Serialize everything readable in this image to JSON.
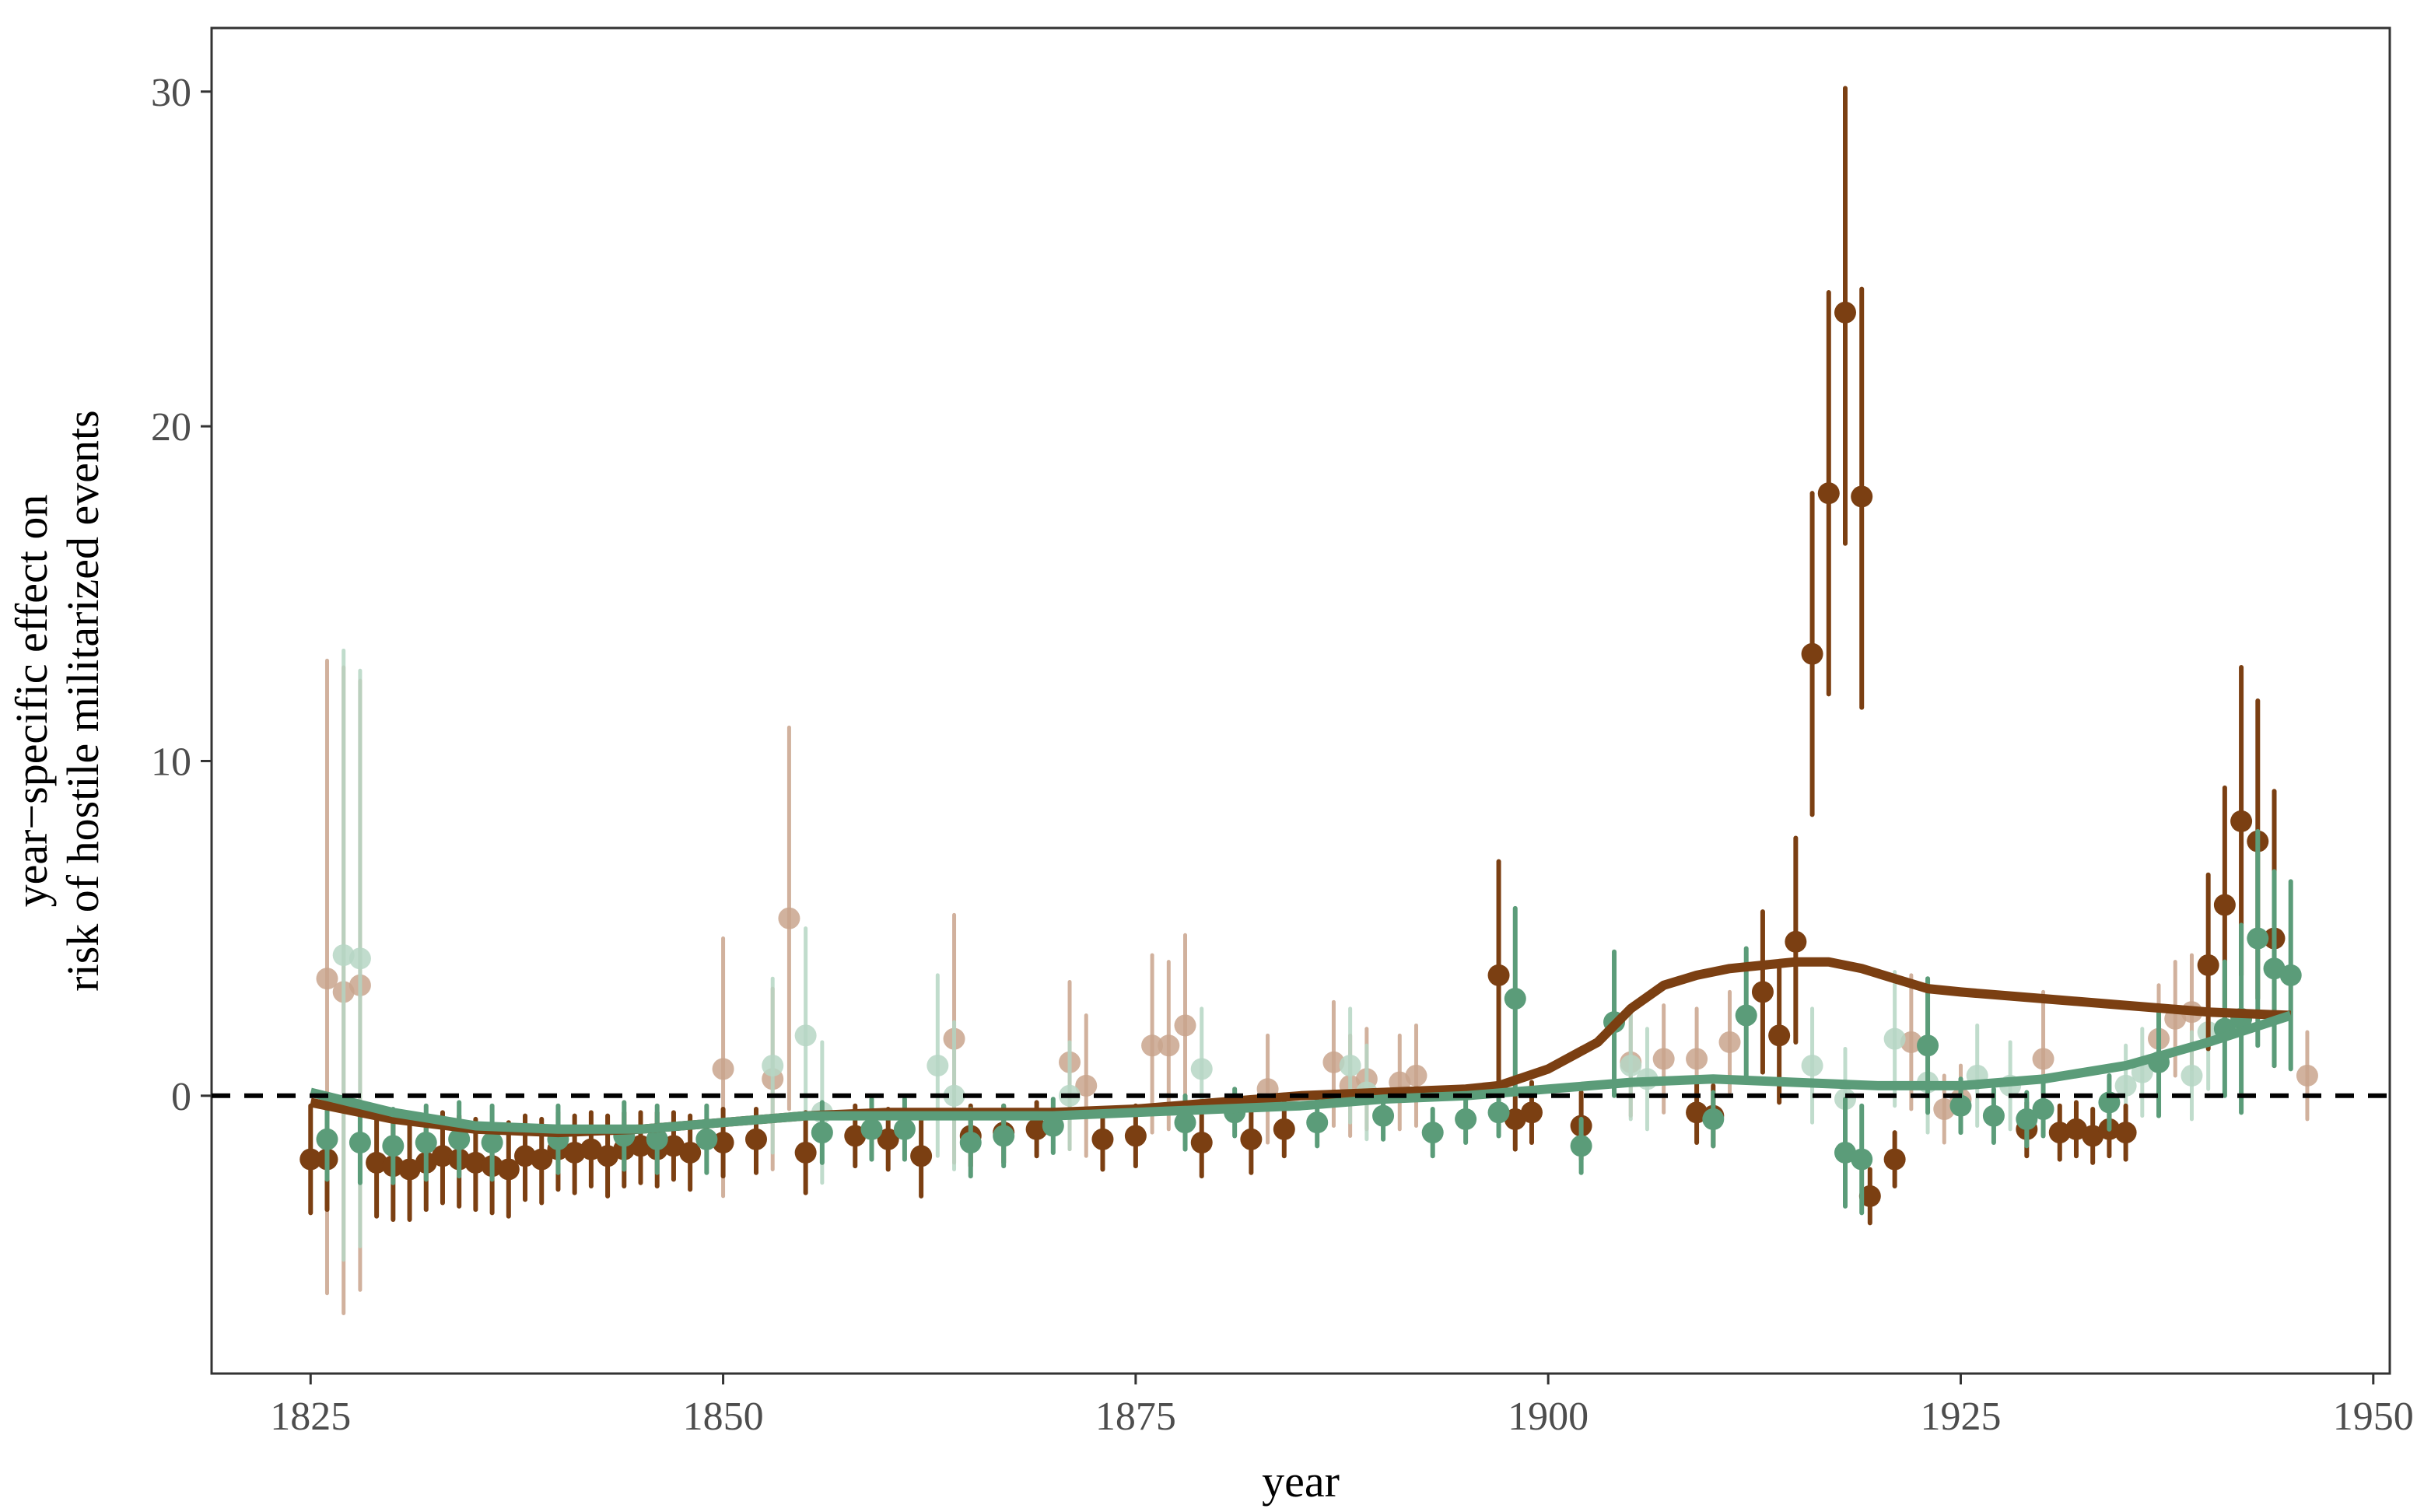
{
  "chart_data": {
    "type": "scatter",
    "title": "",
    "xlabel": "year",
    "ylabel_line1": "year−specific effect on",
    "ylabel_line2": "risk of hostile militarized events",
    "xlim": [
      1819,
      1951
    ],
    "ylim": [
      -8.3,
      31.9
    ],
    "x_ticks": [
      1825,
      1850,
      1875,
      1900,
      1925,
      1950
    ],
    "y_ticks": [
      0,
      10,
      20,
      30
    ],
    "reference_line": 0,
    "grid": false,
    "legend": "none",
    "colors": {
      "brown": "#7b3f12",
      "green": "#5b9c79",
      "brown_faded": "#c9a48d",
      "green_faded": "#b6d6c4"
    },
    "series": [
      {
        "color": "brown",
        "faded": false,
        "points": [
          [
            1825,
            -1.9,
            -3.5,
            -0.3
          ],
          [
            1826,
            -1.9,
            -3.4,
            -0.4
          ],
          [
            1829,
            -2.0,
            -3.6,
            -0.5
          ],
          [
            1830,
            -2.1,
            -3.7,
            -0.6
          ],
          [
            1831,
            -2.2,
            -3.7,
            -0.7
          ],
          [
            1832,
            -2.0,
            -3.4,
            -0.6
          ],
          [
            1833,
            -1.8,
            -3.2,
            -0.5
          ],
          [
            1834,
            -1.9,
            -3.3,
            -0.6
          ],
          [
            1835,
            -2.0,
            -3.4,
            -0.7
          ],
          [
            1836,
            -2.1,
            -3.5,
            -0.8
          ],
          [
            1837,
            -2.2,
            -3.6,
            -0.8
          ],
          [
            1838,
            -1.8,
            -3.1,
            -0.6
          ],
          [
            1839,
            -1.9,
            -3.2,
            -0.7
          ],
          [
            1840,
            -1.6,
            -2.8,
            -0.5
          ],
          [
            1841,
            -1.7,
            -2.9,
            -0.6
          ],
          [
            1842,
            -1.6,
            -2.7,
            -0.5
          ],
          [
            1843,
            -1.8,
            -3.0,
            -0.6
          ],
          [
            1844,
            -1.6,
            -2.7,
            -0.5
          ],
          [
            1845,
            -1.5,
            -2.6,
            -0.5
          ],
          [
            1846,
            -1.6,
            -2.7,
            -0.5
          ],
          [
            1847,
            -1.5,
            -2.5,
            -0.5
          ],
          [
            1848,
            -1.7,
            -2.8,
            -0.6
          ],
          [
            1850,
            -1.4,
            -2.4,
            -0.4
          ],
          [
            1852,
            -1.3,
            -2.3,
            -0.4
          ],
          [
            1855,
            -1.7,
            -2.9,
            -0.5
          ],
          [
            1858,
            -1.2,
            -2.1,
            -0.3
          ],
          [
            1860,
            -1.3,
            -2.2,
            -0.4
          ],
          [
            1862,
            -1.8,
            -3.0,
            -0.6
          ],
          [
            1865,
            -1.2,
            -2.1,
            -0.3
          ],
          [
            1867,
            -1.1,
            -2.0,
            -0.3
          ],
          [
            1869,
            -1.0,
            -1.8,
            -0.2
          ],
          [
            1873,
            -1.3,
            -2.2,
            -0.4
          ],
          [
            1875,
            -1.2,
            -2.1,
            -0.3
          ],
          [
            1879,
            -1.4,
            -2.4,
            -0.4
          ],
          [
            1882,
            -1.3,
            -2.3,
            -0.4
          ],
          [
            1884,
            -1.0,
            -1.8,
            -0.2
          ],
          [
            1897,
            3.6,
            0.2,
            7.0
          ],
          [
            1898,
            -0.7,
            -1.6,
            0.2
          ],
          [
            1899,
            -0.5,
            -1.4,
            0.4
          ],
          [
            1902,
            -0.9,
            -1.9,
            0.1
          ],
          [
            1909,
            -0.5,
            -1.4,
            0.4
          ],
          [
            1910,
            -0.6,
            -1.5,
            0.3
          ],
          [
            1913,
            3.1,
            0.7,
            5.5
          ],
          [
            1914,
            1.8,
            -0.2,
            3.8
          ],
          [
            1915,
            4.6,
            1.6,
            7.7
          ],
          [
            1916,
            13.2,
            8.4,
            18.0
          ],
          [
            1917,
            18.0,
            12.0,
            24.0
          ],
          [
            1918,
            23.4,
            16.5,
            30.1
          ],
          [
            1919,
            17.9,
            11.6,
            24.1
          ],
          [
            1919.5,
            -3.0,
            -3.8,
            -2.2
          ],
          [
            1921,
            -1.9,
            -2.7,
            -1.1
          ],
          [
            1929,
            -1.0,
            -1.8,
            -0.2
          ],
          [
            1931,
            -1.1,
            -1.9,
            -0.3
          ],
          [
            1932,
            -1.0,
            -1.8,
            -0.2
          ],
          [
            1933,
            -1.2,
            -2.0,
            -0.4
          ],
          [
            1934,
            -1.0,
            -1.8,
            -0.2
          ],
          [
            1935,
            -1.1,
            -1.9,
            -0.3
          ],
          [
            1940,
            3.9,
            1.4,
            6.6
          ],
          [
            1941,
            5.7,
            2.3,
            9.2
          ],
          [
            1942,
            8.2,
            3.6,
            12.8
          ],
          [
            1943,
            7.6,
            2.9,
            11.8
          ],
          [
            1944,
            4.7,
            0.9,
            9.1
          ]
        ]
      },
      {
        "color": "brown",
        "faded": true,
        "points": [
          [
            1826,
            3.5,
            -5.9,
            13.0
          ],
          [
            1827,
            3.1,
            -6.5,
            12.8
          ],
          [
            1828,
            3.3,
            -5.8,
            12.4
          ],
          [
            1850,
            0.8,
            -3.0,
            4.7
          ],
          [
            1853,
            0.5,
            -2.2,
            3.2
          ],
          [
            1854,
            5.3,
            -0.4,
            11.0
          ],
          [
            1864,
            1.7,
            -2.0,
            5.4
          ],
          [
            1871,
            1.0,
            -1.6,
            3.4
          ],
          [
            1872,
            0.3,
            -1.8,
            2.4
          ],
          [
            1876,
            1.5,
            -1.1,
            4.2
          ],
          [
            1877,
            1.5,
            -1.0,
            4.0
          ],
          [
            1878,
            2.1,
            -0.6,
            4.8
          ],
          [
            1883,
            0.2,
            -1.4,
            1.8
          ],
          [
            1887,
            1.0,
            -0.9,
            2.8
          ],
          [
            1888,
            0.3,
            -1.2,
            1.8
          ],
          [
            1889,
            0.5,
            -1.0,
            2.0
          ],
          [
            1891,
            0.4,
            -1.0,
            1.8
          ],
          [
            1892,
            0.6,
            -0.9,
            2.1
          ],
          [
            1905,
            1.0,
            -0.6,
            2.6
          ],
          [
            1907,
            1.1,
            -0.5,
            2.7
          ],
          [
            1909,
            1.1,
            -0.4,
            2.6
          ],
          [
            1911,
            1.6,
            0.1,
            3.1
          ],
          [
            1922,
            1.6,
            -0.4,
            3.6
          ],
          [
            1924,
            -0.4,
            -1.4,
            0.6
          ],
          [
            1925,
            -0.1,
            -1.1,
            0.9
          ],
          [
            1930,
            1.1,
            -0.9,
            3.1
          ],
          [
            1937,
            1.7,
            0.1,
            3.3
          ],
          [
            1938,
            2.3,
            0.6,
            4.0
          ],
          [
            1939,
            2.5,
            0.8,
            4.2
          ],
          [
            1946,
            0.6,
            -0.7,
            1.9
          ]
        ]
      },
      {
        "color": "green",
        "faded": false,
        "points": [
          [
            1826,
            -1.3,
            -2.5,
            -0.1
          ],
          [
            1828,
            -1.4,
            -2.6,
            -0.2
          ],
          [
            1830,
            -1.5,
            -2.6,
            -0.4
          ],
          [
            1832,
            -1.4,
            -2.5,
            -0.3
          ],
          [
            1834,
            -1.3,
            -2.4,
            -0.2
          ],
          [
            1836,
            -1.4,
            -2.5,
            -0.3
          ],
          [
            1840,
            -1.3,
            -2.3,
            -0.3
          ],
          [
            1844,
            -1.2,
            -2.2,
            -0.2
          ],
          [
            1846,
            -1.3,
            -2.3,
            -0.3
          ],
          [
            1849,
            -1.3,
            -2.3,
            -0.3
          ],
          [
            1856,
            -1.1,
            -2.0,
            -0.2
          ],
          [
            1859,
            -1.0,
            -1.9,
            -0.1
          ],
          [
            1861,
            -1.0,
            -1.9,
            -0.1
          ],
          [
            1865,
            -1.4,
            -2.4,
            -0.4
          ],
          [
            1867,
            -1.2,
            -2.1,
            -0.3
          ],
          [
            1870,
            -0.9,
            -1.7,
            -0.1
          ],
          [
            1878,
            -0.8,
            -1.6,
            0.0
          ],
          [
            1881,
            -0.5,
            -1.2,
            0.2
          ],
          [
            1886,
            -0.8,
            -1.5,
            -0.1
          ],
          [
            1890,
            -0.6,
            -1.3,
            0.1
          ],
          [
            1893,
            -1.1,
            -1.8,
            -0.4
          ],
          [
            1895,
            -0.7,
            -1.4,
            0.0
          ],
          [
            1897,
            -0.5,
            -1.2,
            0.2
          ],
          [
            1898,
            2.9,
            0.2,
            5.6
          ],
          [
            1902,
            -1.5,
            -2.3,
            -0.7
          ],
          [
            1904,
            2.2,
            0.0,
            4.3
          ],
          [
            1910,
            -0.7,
            -1.5,
            0.1
          ],
          [
            1912,
            2.4,
            0.4,
            4.4
          ],
          [
            1918,
            -1.7,
            -3.3,
            -0.1
          ],
          [
            1919,
            -1.9,
            -3.5,
            -0.3
          ],
          [
            1923,
            1.5,
            -0.5,
            3.5
          ],
          [
            1925,
            -0.3,
            -1.1,
            0.5
          ],
          [
            1927,
            -0.6,
            -1.4,
            0.2
          ],
          [
            1929,
            -0.7,
            -1.5,
            0.1
          ],
          [
            1930,
            -0.4,
            -1.2,
            0.4
          ],
          [
            1934,
            -0.2,
            -1.0,
            0.6
          ],
          [
            1937,
            1.0,
            -0.6,
            2.6
          ],
          [
            1941,
            2.0,
            0.0,
            4.0
          ],
          [
            1942,
            2.3,
            -0.5,
            5.1
          ],
          [
            1943,
            4.7,
            1.5,
            7.9
          ],
          [
            1944,
            3.8,
            0.9,
            6.7
          ],
          [
            1945,
            3.6,
            0.8,
            6.4
          ]
        ]
      },
      {
        "color": "green",
        "faded": true,
        "points": [
          [
            1827,
            4.2,
            -4.9,
            13.3
          ],
          [
            1828,
            4.1,
            -4.5,
            12.7
          ],
          [
            1853,
            0.9,
            -1.7,
            3.5
          ],
          [
            1855,
            1.8,
            -1.4,
            5.0
          ],
          [
            1856,
            -0.5,
            -2.6,
            1.6
          ],
          [
            1863,
            0.9,
            -1.8,
            3.6
          ],
          [
            1864,
            0.0,
            -2.2,
            2.2
          ],
          [
            1871,
            0.0,
            -1.6,
            1.6
          ],
          [
            1879,
            0.8,
            -1.0,
            2.6
          ],
          [
            1888,
            0.9,
            -0.8,
            2.6
          ],
          [
            1889,
            0.1,
            -1.3,
            1.5
          ],
          [
            1905,
            0.9,
            -0.7,
            2.5
          ],
          [
            1906,
            0.5,
            -1.0,
            2.0
          ],
          [
            1916,
            0.9,
            -0.8,
            2.6
          ],
          [
            1918,
            -0.1,
            -1.6,
            1.4
          ],
          [
            1921,
            1.7,
            -0.3,
            3.7
          ],
          [
            1923,
            0.4,
            -1.1,
            1.9
          ],
          [
            1926,
            0.6,
            -0.9,
            2.1
          ],
          [
            1928,
            0.3,
            -1.0,
            1.6
          ],
          [
            1935,
            0.3,
            -0.9,
            1.5
          ],
          [
            1936,
            0.7,
            -0.6,
            2.0
          ],
          [
            1939,
            0.6,
            -0.7,
            1.9
          ],
          [
            1940,
            1.9,
            0.2,
            3.6
          ]
        ]
      }
    ],
    "smooth_lines": [
      {
        "color": "brown",
        "x": [
          1825,
          1830,
          1835,
          1840,
          1845,
          1850,
          1855,
          1860,
          1865,
          1870,
          1875,
          1880,
          1885,
          1890,
          1895,
          1897,
          1900,
          1903,
          1905,
          1907,
          1909,
          1911,
          1913,
          1915,
          1917,
          1919,
          1921,
          1923,
          1925,
          1930,
          1935,
          1940,
          1945
        ],
        "y": [
          -0.2,
          -0.7,
          -1.0,
          -1.1,
          -1.0,
          -0.8,
          -0.6,
          -0.5,
          -0.5,
          -0.5,
          -0.4,
          -0.2,
          0.0,
          0.1,
          0.2,
          0.3,
          0.8,
          1.6,
          2.6,
          3.3,
          3.6,
          3.8,
          3.9,
          4.0,
          4.0,
          3.8,
          3.5,
          3.2,
          3.1,
          2.9,
          2.7,
          2.5,
          2.4
        ]
      },
      {
        "color": "green",
        "x": [
          1825,
          1830,
          1835,
          1840,
          1845,
          1850,
          1855,
          1860,
          1865,
          1870,
          1875,
          1880,
          1885,
          1890,
          1895,
          1900,
          1905,
          1910,
          1915,
          1920,
          1925,
          1930,
          1935,
          1940,
          1945
        ],
        "y": [
          0.1,
          -0.5,
          -0.9,
          -1.0,
          -1.0,
          -0.8,
          -0.6,
          -0.6,
          -0.6,
          -0.6,
          -0.5,
          -0.4,
          -0.3,
          -0.1,
          0.0,
          0.2,
          0.4,
          0.5,
          0.4,
          0.3,
          0.3,
          0.5,
          0.9,
          1.6,
          2.4
        ]
      }
    ]
  }
}
